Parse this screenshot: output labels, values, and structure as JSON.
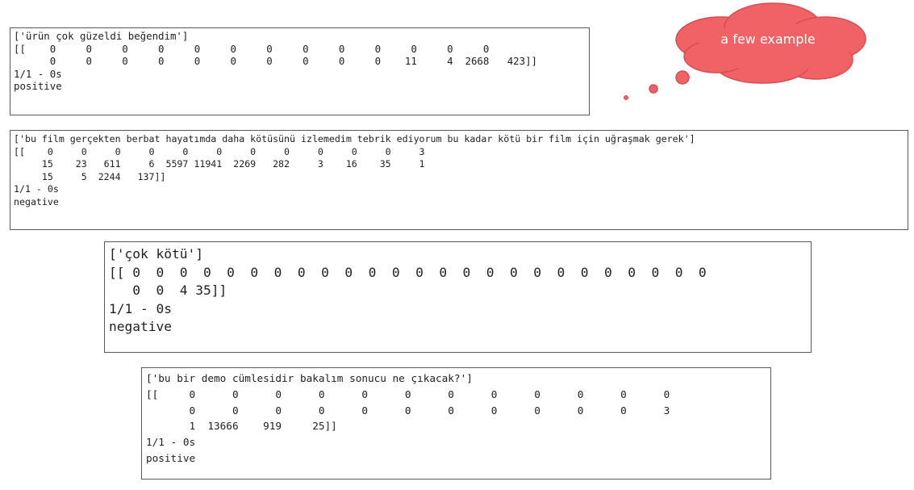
{
  "callout": {
    "text": "a few example",
    "fill": "#f06266",
    "stroke": "#d64e53"
  },
  "examples": [
    {
      "lines": [
        "['ürün çok güzeldi beğendim']",
        "[[    0     0     0     0     0     0     0     0     0     0     0     0     0",
        "      0     0     0     0     0     0     0     0     0     0    11     4  2668   423]]",
        "1/1 - 0s",
        "positive"
      ]
    },
    {
      "lines": [
        "['bu film gerçekten berbat hayatımda daha kötüsünü izlemedim tebrik ediyorum bu kadar kötü bir film için uğraşmak gerek']",
        "[[    0     0     0     0     0     0     0     0     0     0     0     3",
        "     15    23   611     6  5597 11941  2269   282     3    16    35     1",
        "     15     5  2244   137]]",
        "1/1 - 0s",
        "negative"
      ]
    },
    {
      "lines": [
        "['çok kötü']",
        "[[ 0  0  0  0  0  0  0  0  0  0  0  0  0  0  0  0  0  0  0  0  0  0  0  0  0",
        "   0  0  4 35]]",
        "1/1 - 0s",
        "negative"
      ]
    },
    {
      "lines": [
        "['bu bir demo cümlesidir bakalım sonucu ne çıkacak?']",
        "[[     0      0      0      0      0      0      0      0      0      0      0      0",
        "       0      0      0      0      0      0      0      0      0      0      0      3",
        "       1  13666    919     25]]",
        "1/1 - 0s",
        "positive"
      ]
    }
  ]
}
